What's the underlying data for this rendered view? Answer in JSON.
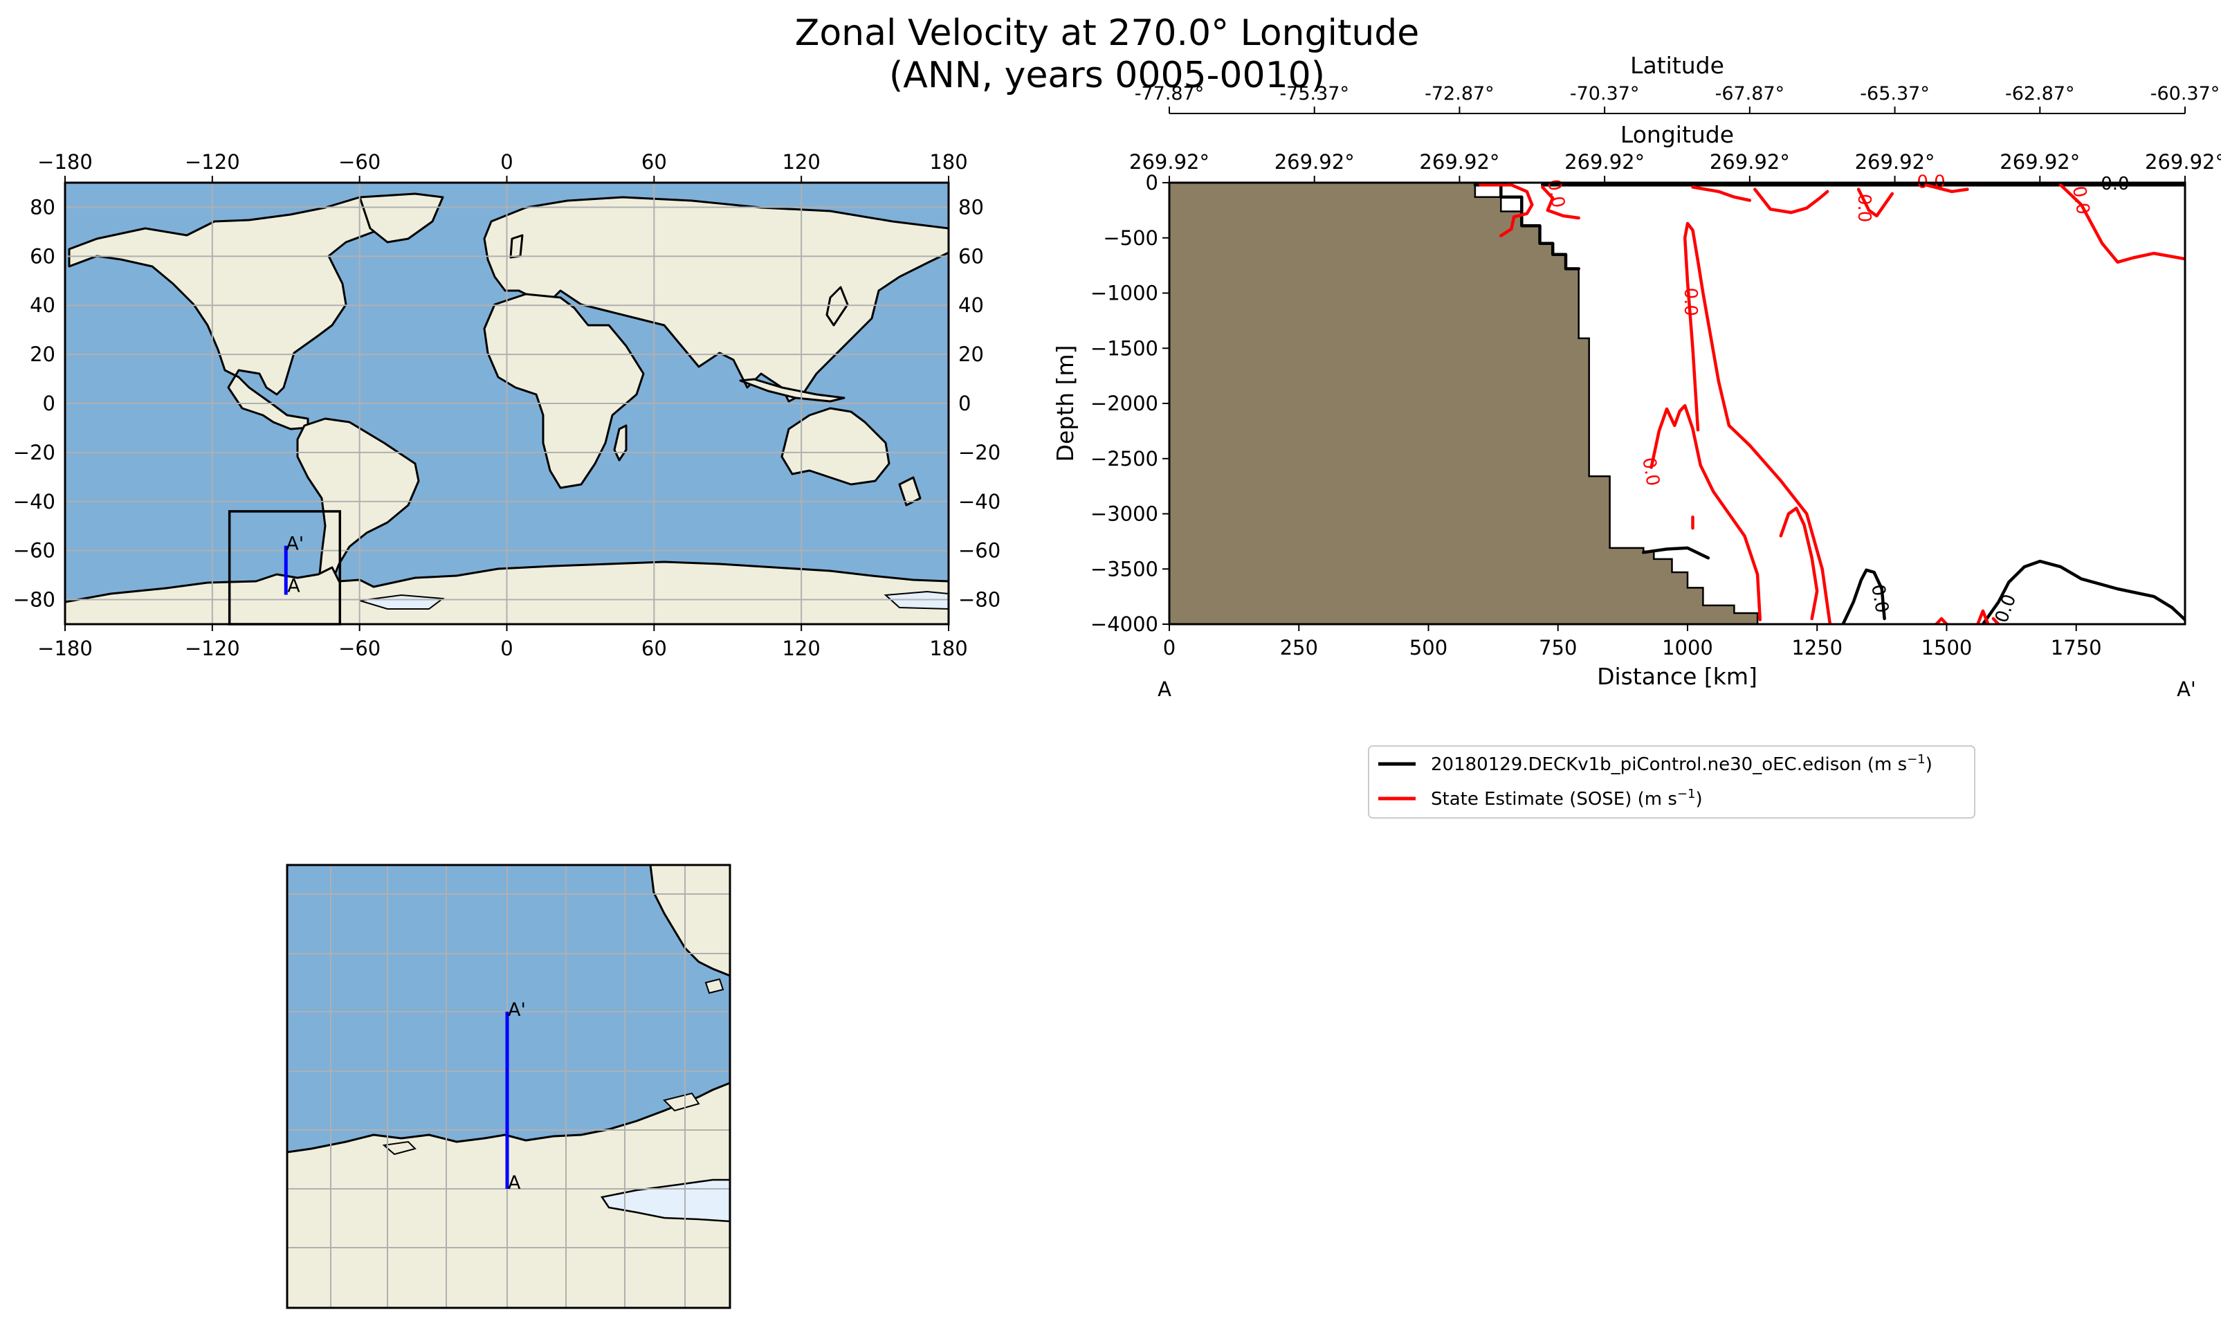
{
  "figure": {
    "title_line1": "Zonal Velocity at 270.0° Longitude",
    "title_line2": "(ANN, years 0005-0010)"
  },
  "colors": {
    "ocean": "#7fb0d8",
    "land": "#efeedc",
    "ice": "#e4f0fb",
    "bathymetry": "#8c7e63",
    "model_line": "#000000",
    "obs_line": "#ff0000",
    "transect": "#0000ff",
    "grid": "#b0b0b0"
  },
  "map_global": {
    "lon_ticks": [
      "−180",
      "−120",
      "−60",
      "0",
      "60",
      "120",
      "180"
    ],
    "lat_ticks": [
      "80",
      "60",
      "40",
      "20",
      "0",
      "−20",
      "−40",
      "−60",
      "−80"
    ],
    "transect_label_start": "A",
    "transect_label_end": "A'",
    "inset_box_lon": [
      -113,
      -68
    ],
    "inset_box_lat": [
      -90,
      -44
    ],
    "transect_lon": -90,
    "transect_lat": [
      -78,
      -58
    ]
  },
  "map_inset": {
    "transect_label_start": "A",
    "transect_label_end": "A'"
  },
  "chart_data": {
    "type": "line",
    "subtype": "vertical transect contour",
    "xlabel": "Distance [km]",
    "ylabel": "Depth [m]",
    "xlim": [
      0,
      1960
    ],
    "ylim": [
      -4000,
      0
    ],
    "x_ticks": [
      "0",
      "250",
      "500",
      "750",
      "1000",
      "1250",
      "1500",
      "1750"
    ],
    "y_ticks": [
      "0",
      "−500",
      "−1000",
      "−1500",
      "−2000",
      "−2500",
      "−3000",
      "−3500",
      "−4000"
    ],
    "start_label": "A",
    "end_label": "A'",
    "top_axis_latitude": {
      "label": "Latitude",
      "ticks": [
        "-77.87°",
        "-75.37°",
        "-72.87°",
        "-70.37°",
        "-67.87°",
        "-65.37°",
        "-62.87°",
        "-60.37°"
      ]
    },
    "top_axis_longitude": {
      "label": "Longitude",
      "ticks": [
        "269.92°",
        "269.92°",
        "269.92°",
        "269.92°",
        "269.92°",
        "269.92°",
        "269.92°",
        "269.92°"
      ]
    },
    "bathymetry_profile": [
      [
        0,
        0
      ],
      [
        590,
        0
      ],
      [
        590,
        -130
      ],
      [
        640,
        -130
      ],
      [
        640,
        -260
      ],
      [
        680,
        -260
      ],
      [
        680,
        -390
      ],
      [
        715,
        -390
      ],
      [
        715,
        -550
      ],
      [
        740,
        -550
      ],
      [
        740,
        -650
      ],
      [
        765,
        -650
      ],
      [
        765,
        -780
      ],
      [
        790,
        -780
      ],
      [
        790,
        -1410
      ],
      [
        810,
        -1410
      ],
      [
        810,
        -2660
      ],
      [
        850,
        -2660
      ],
      [
        850,
        -3310
      ],
      [
        915,
        -3310
      ],
      [
        915,
        -3340
      ],
      [
        935,
        -3340
      ],
      [
        935,
        -3410
      ],
      [
        970,
        -3410
      ],
      [
        970,
        -3530
      ],
      [
        1000,
        -3530
      ],
      [
        1000,
        -3670
      ],
      [
        1030,
        -3670
      ],
      [
        1030,
        -3830
      ],
      [
        1090,
        -3830
      ],
      [
        1090,
        -3900
      ],
      [
        1135,
        -3900
      ],
      [
        1135,
        -4000
      ],
      [
        0,
        -4000
      ]
    ],
    "series": [
      {
        "name": "20180129.DECKv1b_piControl.ne30_oEC.edison (m s$^{-1}$)",
        "legend_label": "20180129.DECKv1b_piControl.ne30_oEC.edison (m s",
        "legend_sup": "−1",
        "legend_tail": ")",
        "color": "#000000",
        "contour_level": "0.0",
        "contours": [
          [
            [
              590,
              -20
            ],
            [
              640,
              -20
            ],
            [
              640,
              -130
            ],
            [
              680,
              -130
            ],
            [
              680,
              -390
            ],
            [
              715,
              -390
            ],
            [
              715,
              -550
            ],
            [
              740,
              -550
            ],
            [
              740,
              -650
            ],
            [
              765,
              -650
            ],
            [
              765,
              -780
            ],
            [
              790,
              -780
            ]
          ],
          [
            [
              720,
              -20
            ],
            [
              1960,
              -20
            ]
          ],
          [
            [
              915,
              -3350
            ],
            [
              960,
              -3320
            ],
            [
              1000,
              -3310
            ],
            [
              1040,
              -3400
            ]
          ],
          [
            [
              1300,
              -4000
            ],
            [
              1320,
              -3800
            ],
            [
              1335,
              -3600
            ],
            [
              1345,
              -3510
            ],
            [
              1360,
              -3530
            ],
            [
              1375,
              -3680
            ],
            [
              1380,
              -3950
            ]
          ],
          [
            [
              1570,
              -4000
            ],
            [
              1600,
              -3800
            ],
            [
              1620,
              -3620
            ],
            [
              1650,
              -3480
            ],
            [
              1680,
              -3430
            ],
            [
              1720,
              -3480
            ],
            [
              1760,
              -3590
            ],
            [
              1830,
              -3680
            ],
            [
              1900,
              -3750
            ],
            [
              1935,
              -3850
            ],
            [
              1960,
              -3960
            ]
          ]
        ]
      },
      {
        "name": "State Estimate (SOSE) (m s$^{-1}$)",
        "legend_label": "State Estimate (SOSE) (m s",
        "legend_sup": "−1",
        "legend_tail": ")",
        "color": "#ff0000",
        "contour_level": "0.0",
        "contours": [
          [
            [
              600,
              -20
            ],
            [
              660,
              -20
            ],
            [
              690,
              -80
            ],
            [
              700,
              -200
            ],
            [
              690,
              -280
            ],
            [
              665,
              -310
            ],
            [
              660,
              -420
            ],
            [
              640,
              -480
            ]
          ],
          [
            [
              720,
              -40
            ],
            [
              740,
              -140
            ],
            [
              730,
              -250
            ],
            [
              760,
              -300
            ],
            [
              790,
              -320
            ]
          ],
          [
            [
              1010,
              -40
            ],
            [
              1060,
              -80
            ],
            [
              1090,
              -130
            ],
            [
              1120,
              -160
            ]
          ],
          [
            [
              1130,
              -60
            ],
            [
              1160,
              -240
            ],
            [
              1200,
              -270
            ],
            [
              1230,
              -230
            ],
            [
              1255,
              -140
            ],
            [
              1270,
              -80
            ]
          ],
          [
            [
              1330,
              -60
            ],
            [
              1350,
              -250
            ],
            [
              1365,
              -300
            ],
            [
              1380,
              -200
            ],
            [
              1395,
              -100
            ]
          ],
          [
            [
              1460,
              -20
            ],
            [
              1510,
              -80
            ],
            [
              1540,
              -60
            ]
          ],
          [
            [
              1720,
              -20
            ],
            [
              1760,
              -200
            ],
            [
              1800,
              -550
            ],
            [
              1830,
              -720
            ],
            [
              1860,
              -680
            ],
            [
              1900,
              -640
            ],
            [
              1960,
              -690
            ]
          ],
          [
            [
              1020,
              -2240
            ],
            [
              1010,
              -1500
            ],
            [
              1000,
              -900
            ],
            [
              995,
              -500
            ],
            [
              1000,
              -370
            ],
            [
              1010,
              -430
            ],
            [
              1020,
              -710
            ],
            [
              1030,
              -1000
            ],
            [
              1060,
              -1800
            ],
            [
              1080,
              -2200
            ],
            [
              1120,
              -2380
            ],
            [
              1180,
              -2700
            ],
            [
              1230,
              -3000
            ],
            [
              1260,
              -3500
            ],
            [
              1275,
              -4000
            ]
          ],
          [
            [
              930,
              -2580
            ],
            [
              945,
              -2250
            ],
            [
              960,
              -2050
            ],
            [
              975,
              -2200
            ],
            [
              985,
              -2070
            ],
            [
              995,
              -2020
            ],
            [
              1010,
              -2230
            ],
            [
              1025,
              -2560
            ],
            [
              1050,
              -2800
            ],
            [
              1080,
              -3000
            ],
            [
              1110,
              -3200
            ],
            [
              1135,
              -3550
            ],
            [
              1140,
              -3960
            ]
          ],
          [
            [
              1180,
              -3200
            ],
            [
              1195,
              -3000
            ],
            [
              1210,
              -2950
            ],
            [
              1225,
              -3100
            ],
            [
              1240,
              -3400
            ],
            [
              1250,
              -3700
            ],
            [
              1240,
              -3950
            ]
          ],
          [
            [
              1480,
              -4000
            ],
            [
              1490,
              -3950
            ],
            [
              1500,
              -4000
            ]
          ],
          [
            [
              1560,
              -4000
            ],
            [
              1570,
              -3880
            ],
            [
              1580,
              -4000
            ]
          ],
          [
            [
              1590,
              -3950
            ],
            [
              1600,
              -4000
            ]
          ],
          [
            [
              1010,
              -3130
            ],
            [
              1010,
              -3030
            ]
          ]
        ]
      }
    ],
    "contour_labels": [
      {
        "text": "0.0",
        "x": 1370,
        "y": -3770,
        "color": "black",
        "angle": 80
      },
      {
        "text": "0.0",
        "x": 1615,
        "y": -3860,
        "color": "black",
        "angle": -70
      },
      {
        "text": "0.0",
        "x": 1825,
        "y": -15,
        "color": "black",
        "angle": 0
      },
      {
        "text": "0.0",
        "x": 745,
        "y": -100,
        "color": "red",
        "angle": 80
      },
      {
        "text": "0.0",
        "x": 1005,
        "y": -1080,
        "color": "red",
        "angle": 90
      },
      {
        "text": "0.0",
        "x": 928,
        "y": -2620,
        "color": "red",
        "angle": 80
      },
      {
        "text": "0.0",
        "x": 1340,
        "y": -230,
        "color": "red",
        "angle": 90
      },
      {
        "text": "0.0",
        "x": 1758,
        "y": -160,
        "color": "red",
        "angle": 80
      },
      {
        "text": "0.0",
        "x": 1470,
        "y": 0,
        "color": "red",
        "angle": 0
      }
    ]
  }
}
